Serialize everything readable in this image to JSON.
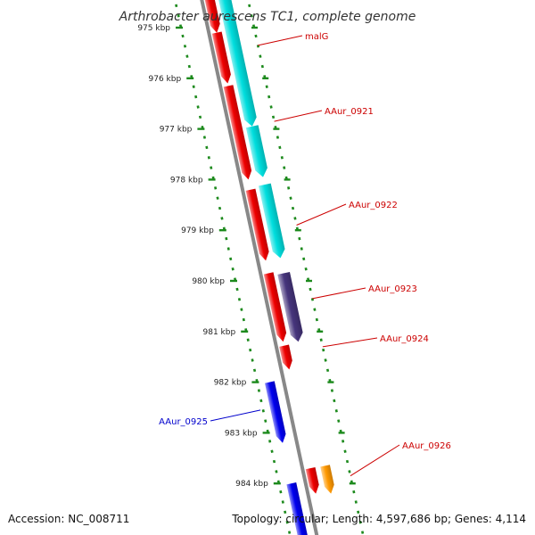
{
  "title": "Arthrobacter aurescens TC1, complete genome",
  "footer": {
    "accession": "Accession: NC_008711",
    "topology": "Topology: circular; Length: 4,597,686 bp; Genes: 4,114"
  },
  "colors": {
    "backbone": "#888888",
    "red": "#ee0000",
    "cyan": "#00dede",
    "purple": "#46357c",
    "blue": "#0000ee",
    "orange": "#ff9900",
    "tick": "#1d8a1d",
    "label_red": "#cc0000",
    "label_blue": "#0000cc"
  },
  "ticks": [
    {
      "kbp": 975,
      "label": "975 kbp"
    },
    {
      "kbp": 976,
      "label": "976 kbp"
    },
    {
      "kbp": 977,
      "label": "977 kbp"
    },
    {
      "kbp": 978,
      "label": "978 kbp"
    },
    {
      "kbp": 979,
      "label": "979 kbp"
    },
    {
      "kbp": 980,
      "label": "980 kbp"
    },
    {
      "kbp": 981,
      "label": "981 kbp"
    },
    {
      "kbp": 982,
      "label": "982 kbp"
    },
    {
      "kbp": 983,
      "label": "983 kbp"
    },
    {
      "kbp": 984,
      "label": "984 kbp"
    }
  ],
  "genes": [
    {
      "name": "malG"
    },
    {
      "name": "AAur_0921"
    },
    {
      "name": "AAur_0922"
    },
    {
      "name": "AAur_0923"
    },
    {
      "name": "AAur_0924"
    },
    {
      "name": "AAur_0925"
    },
    {
      "name": "AAur_0926"
    }
  ]
}
